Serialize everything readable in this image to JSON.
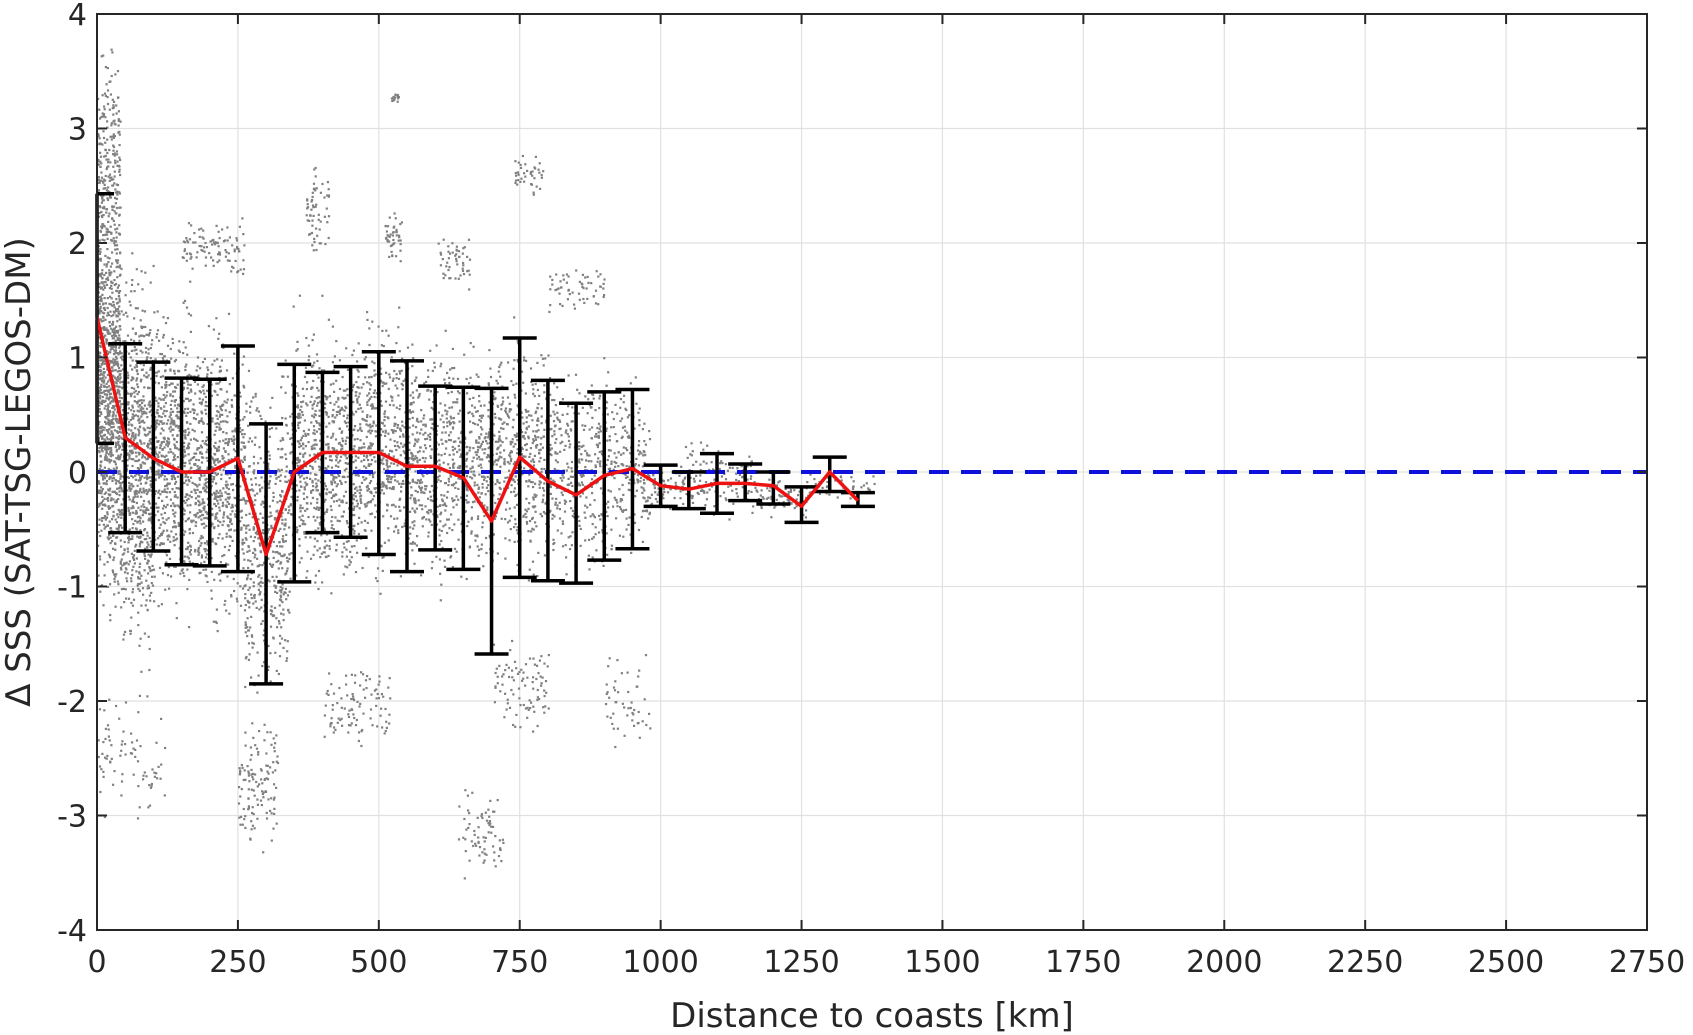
{
  "chart_data": {
    "type": "scatter",
    "title": "",
    "xlabel": "Distance to coasts [km]",
    "ylabel": "Δ SSS (SAT-TSG-LEGOS-DM)",
    "xlim": [
      0,
      2750
    ],
    "ylim": [
      -4,
      4
    ],
    "xticks": [
      0,
      250,
      500,
      750,
      1000,
      1250,
      1500,
      1750,
      2000,
      2250,
      2500,
      2750
    ],
    "yticks": [
      -4,
      -3,
      -2,
      -1,
      0,
      1,
      2,
      3,
      4
    ],
    "xtick_labels": [
      "0",
      "250",
      "500",
      "750",
      "1000",
      "1250",
      "1500",
      "1750",
      "2000",
      "2250",
      "2500",
      "2750"
    ],
    "ytick_labels": [
      "-4",
      "-3",
      "-2",
      "-1",
      "0",
      "1",
      "2",
      "3",
      "4"
    ],
    "grid": true,
    "colors": {
      "scatter": "#808080",
      "mean_line": "#ee1111",
      "zero_line": "#1010dd",
      "error_bars": "#000000",
      "grid": "#e1e1e1"
    },
    "zero_line": {
      "y": 0,
      "style": "dashed"
    },
    "series": [
      {
        "kind": "mean-with-std",
        "x": [
          0,
          50,
          100,
          150,
          200,
          250,
          300,
          350,
          400,
          450,
          500,
          550,
          600,
          650,
          700,
          750,
          800,
          850,
          900,
          950,
          1000,
          1050,
          1100,
          1150,
          1200,
          1250,
          1300,
          1350
        ],
        "mean": [
          1.35,
          0.3,
          0.12,
          0.0,
          0.0,
          0.12,
          -0.72,
          0.0,
          0.17,
          0.17,
          0.17,
          0.05,
          0.05,
          -0.05,
          -0.43,
          0.13,
          -0.08,
          -0.2,
          -0.03,
          0.03,
          -0.12,
          -0.15,
          -0.1,
          -0.1,
          -0.12,
          -0.3,
          0.0,
          -0.25
        ],
        "upper": [
          2.43,
          1.12,
          0.96,
          0.82,
          0.81,
          1.1,
          0.42,
          0.94,
          0.87,
          0.92,
          1.05,
          0.97,
          0.75,
          0.74,
          0.73,
          1.17,
          0.8,
          0.6,
          0.7,
          0.72,
          0.06,
          0.0,
          0.16,
          0.07,
          0.0,
          -0.13,
          0.13,
          -0.18
        ],
        "lower": [
          0.25,
          -0.53,
          -0.69,
          -0.81,
          -0.82,
          -0.87,
          -1.85,
          -0.96,
          -0.53,
          -0.57,
          -0.72,
          -0.87,
          -0.68,
          -0.85,
          -1.59,
          -0.92,
          -0.95,
          -0.97,
          -0.77,
          -0.67,
          -0.3,
          -0.32,
          -0.36,
          -0.25,
          -0.28,
          -0.44,
          -0.17,
          -0.3
        ]
      }
    ],
    "scatter_clusters": [
      {
        "x": [
          0,
          40
        ],
        "y": [
          -1.6,
          2.9
        ],
        "n": 950
      },
      {
        "x": [
          0,
          40
        ],
        "y": [
          1.5,
          4.0
        ],
        "n": 220
      },
      {
        "x": [
          40,
          100
        ],
        "y": [
          -2.0,
          2.2
        ],
        "n": 750
      },
      {
        "x": [
          100,
          160
        ],
        "y": [
          -1.5,
          1.8
        ],
        "n": 520
      },
      {
        "x": [
          160,
          260
        ],
        "y": [
          -1.6,
          1.6
        ],
        "n": 700
      },
      {
        "x": [
          260,
          340
        ],
        "y": [
          -2.4,
          1.2
        ],
        "n": 480
      },
      {
        "x": [
          340,
          460
        ],
        "y": [
          -1.3,
          1.6
        ],
        "n": 700
      },
      {
        "x": [
          460,
          560
        ],
        "y": [
          -1.2,
          1.6
        ],
        "n": 520
      },
      {
        "x": [
          560,
          700
        ],
        "y": [
          -1.2,
          1.4
        ],
        "n": 600
      },
      {
        "x": [
          700,
          800
        ],
        "y": [
          -1.2,
          1.5
        ],
        "n": 420
      },
      {
        "x": [
          800,
          920
        ],
        "y": [
          -1.1,
          1.2
        ],
        "n": 380
      },
      {
        "x": [
          920,
          980
        ],
        "y": [
          -0.9,
          1.0
        ],
        "n": 160
      },
      {
        "x": [
          980,
          1040
        ],
        "y": [
          -0.4,
          0.15
        ],
        "n": 70
      },
      {
        "x": [
          1040,
          1160
        ],
        "y": [
          -0.45,
          0.35
        ],
        "n": 130
      },
      {
        "x": [
          1160,
          1260
        ],
        "y": [
          -0.45,
          0.05
        ],
        "n": 70
      },
      {
        "x": [
          1260,
          1380
        ],
        "y": [
          -0.35,
          0.1
        ],
        "n": 50
      },
      {
        "x": [
          0,
          120
        ],
        "y": [
          -3.2,
          -1.8
        ],
        "n": 80
      },
      {
        "x": [
          250,
          320
        ],
        "y": [
          -3.4,
          -2.0
        ],
        "n": 120
      },
      {
        "x": [
          400,
          520
        ],
        "y": [
          -2.5,
          -1.5
        ],
        "n": 100
      },
      {
        "x": [
          640,
          720
        ],
        "y": [
          -3.7,
          -2.6
        ],
        "n": 70
      },
      {
        "x": [
          700,
          800
        ],
        "y": [
          -2.4,
          -1.4
        ],
        "n": 90
      },
      {
        "x": [
          900,
          980
        ],
        "y": [
          -2.5,
          -1.5
        ],
        "n": 50
      },
      {
        "x": [
          150,
          260
        ],
        "y": [
          1.6,
          2.3
        ],
        "n": 100
      },
      {
        "x": [
          370,
          410
        ],
        "y": [
          1.8,
          2.8
        ],
        "n": 60
      },
      {
        "x": [
          510,
          540
        ],
        "y": [
          1.7,
          2.4
        ],
        "n": 45
      },
      {
        "x": [
          520,
          535
        ],
        "y": [
          3.2,
          3.35
        ],
        "n": 15
      },
      {
        "x": [
          600,
          660
        ],
        "y": [
          1.5,
          2.2
        ],
        "n": 50
      },
      {
        "x": [
          740,
          790
        ],
        "y": [
          2.4,
          2.85
        ],
        "n": 40
      },
      {
        "x": [
          800,
          900
        ],
        "y": [
          1.3,
          1.9
        ],
        "n": 60
      }
    ]
  }
}
